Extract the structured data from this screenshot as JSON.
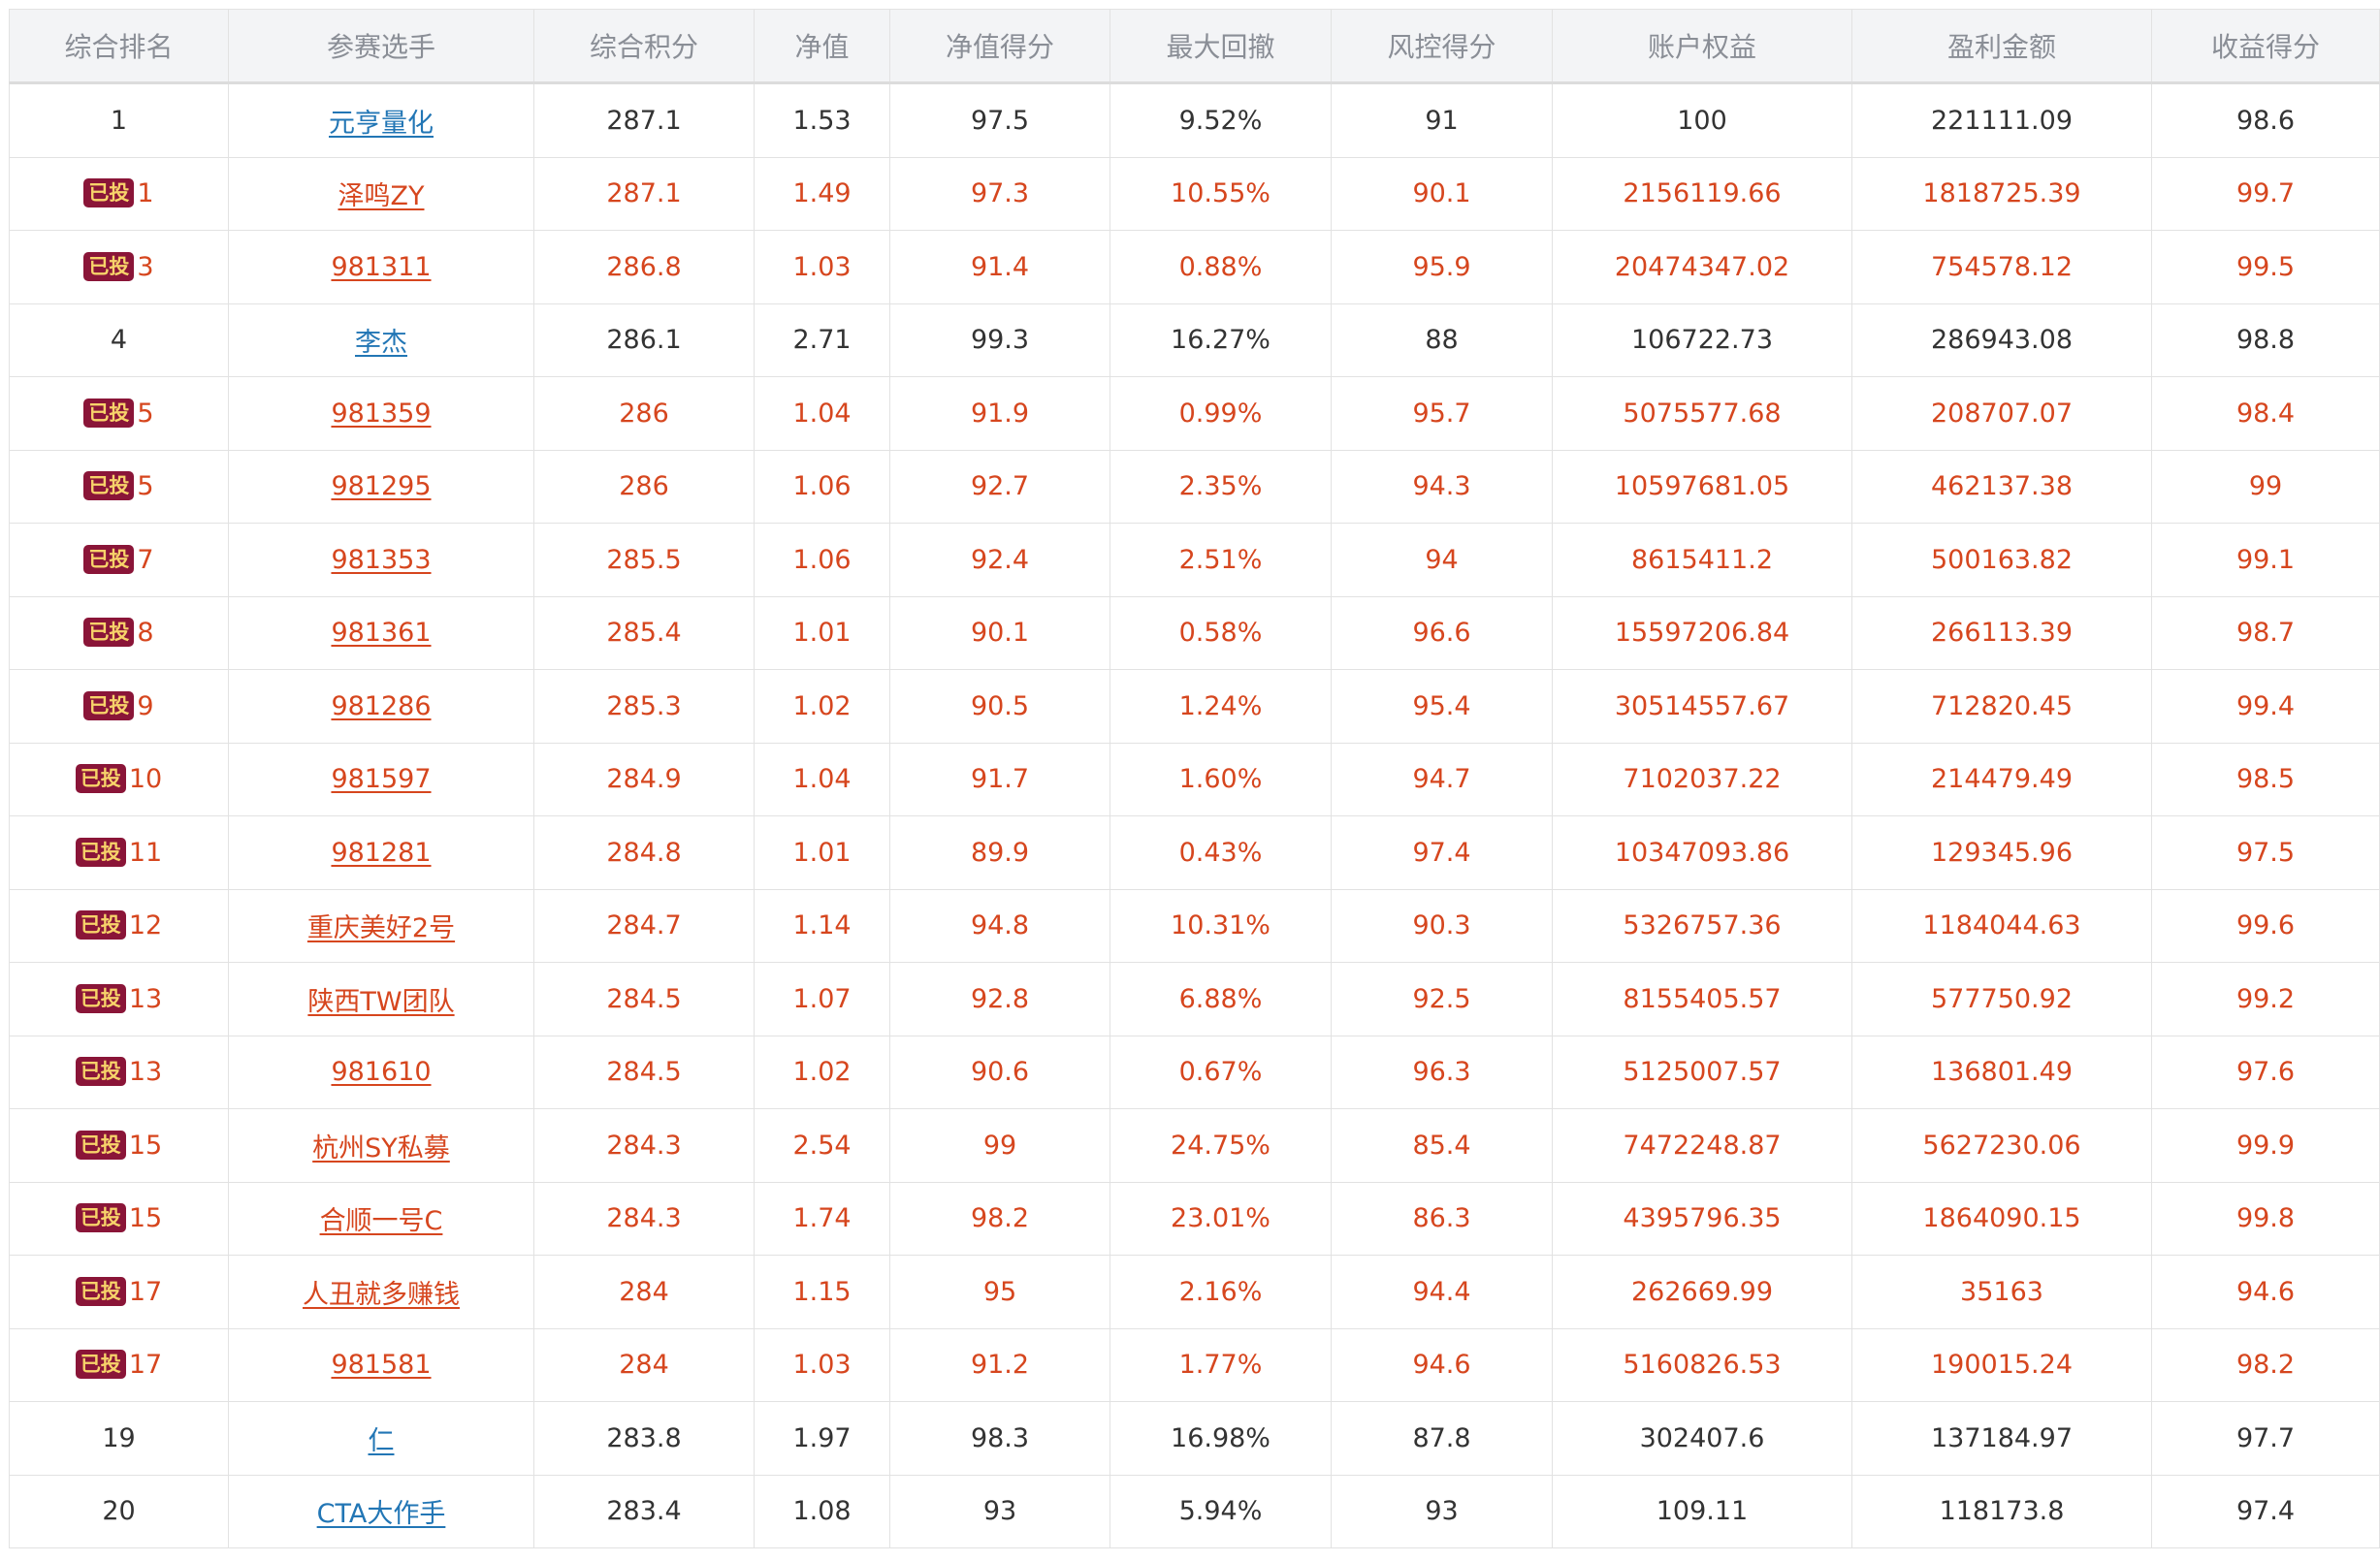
{
  "columns": [
    "综合排名",
    "参赛选手",
    "综合积分",
    "净值",
    "净值得分",
    "最大回撤",
    "风控得分",
    "账户权益",
    "盈利金额",
    "收益得分"
  ],
  "badge_label": "已投",
  "rows": [
    {
      "rank": "1",
      "invested": false,
      "player": "元亨量化",
      "score": "287.1",
      "nav": "1.53",
      "nav_score": "97.5",
      "max_drawdown": "9.52%",
      "risk_score": "91",
      "equity": "100",
      "profit": "221111.09",
      "return_score": "98.6"
    },
    {
      "rank": "1",
      "invested": true,
      "player": "泽鸣ZY",
      "score": "287.1",
      "nav": "1.49",
      "nav_score": "97.3",
      "max_drawdown": "10.55%",
      "risk_score": "90.1",
      "equity": "2156119.66",
      "profit": "1818725.39",
      "return_score": "99.7"
    },
    {
      "rank": "3",
      "invested": true,
      "player": "981311",
      "score": "286.8",
      "nav": "1.03",
      "nav_score": "91.4",
      "max_drawdown": "0.88%",
      "risk_score": "95.9",
      "equity": "20474347.02",
      "profit": "754578.12",
      "return_score": "99.5"
    },
    {
      "rank": "4",
      "invested": false,
      "player": "李杰",
      "score": "286.1",
      "nav": "2.71",
      "nav_score": "99.3",
      "max_drawdown": "16.27%",
      "risk_score": "88",
      "equity": "106722.73",
      "profit": "286943.08",
      "return_score": "98.8"
    },
    {
      "rank": "5",
      "invested": true,
      "player": "981359",
      "score": "286",
      "nav": "1.04",
      "nav_score": "91.9",
      "max_drawdown": "0.99%",
      "risk_score": "95.7",
      "equity": "5075577.68",
      "profit": "208707.07",
      "return_score": "98.4"
    },
    {
      "rank": "5",
      "invested": true,
      "player": "981295",
      "score": "286",
      "nav": "1.06",
      "nav_score": "92.7",
      "max_drawdown": "2.35%",
      "risk_score": "94.3",
      "equity": "10597681.05",
      "profit": "462137.38",
      "return_score": "99"
    },
    {
      "rank": "7",
      "invested": true,
      "player": "981353",
      "score": "285.5",
      "nav": "1.06",
      "nav_score": "92.4",
      "max_drawdown": "2.51%",
      "risk_score": "94",
      "equity": "8615411.2",
      "profit": "500163.82",
      "return_score": "99.1"
    },
    {
      "rank": "8",
      "invested": true,
      "player": "981361",
      "score": "285.4",
      "nav": "1.01",
      "nav_score": "90.1",
      "max_drawdown": "0.58%",
      "risk_score": "96.6",
      "equity": "15597206.84",
      "profit": "266113.39",
      "return_score": "98.7"
    },
    {
      "rank": "9",
      "invested": true,
      "player": "981286",
      "score": "285.3",
      "nav": "1.02",
      "nav_score": "90.5",
      "max_drawdown": "1.24%",
      "risk_score": "95.4",
      "equity": "30514557.67",
      "profit": "712820.45",
      "return_score": "99.4"
    },
    {
      "rank": "10",
      "invested": true,
      "player": "981597",
      "score": "284.9",
      "nav": "1.04",
      "nav_score": "91.7",
      "max_drawdown": "1.60%",
      "risk_score": "94.7",
      "equity": "7102037.22",
      "profit": "214479.49",
      "return_score": "98.5"
    },
    {
      "rank": "11",
      "invested": true,
      "player": "981281",
      "score": "284.8",
      "nav": "1.01",
      "nav_score": "89.9",
      "max_drawdown": "0.43%",
      "risk_score": "97.4",
      "equity": "10347093.86",
      "profit": "129345.96",
      "return_score": "97.5"
    },
    {
      "rank": "12",
      "invested": true,
      "player": "重庆美好2号",
      "score": "284.7",
      "nav": "1.14",
      "nav_score": "94.8",
      "max_drawdown": "10.31%",
      "risk_score": "90.3",
      "equity": "5326757.36",
      "profit": "1184044.63",
      "return_score": "99.6"
    },
    {
      "rank": "13",
      "invested": true,
      "player": "陕西TW团队",
      "score": "284.5",
      "nav": "1.07",
      "nav_score": "92.8",
      "max_drawdown": "6.88%",
      "risk_score": "92.5",
      "equity": "8155405.57",
      "profit": "577750.92",
      "return_score": "99.2"
    },
    {
      "rank": "13",
      "invested": true,
      "player": "981610",
      "score": "284.5",
      "nav": "1.02",
      "nav_score": "90.6",
      "max_drawdown": "0.67%",
      "risk_score": "96.3",
      "equity": "5125007.57",
      "profit": "136801.49",
      "return_score": "97.6"
    },
    {
      "rank": "15",
      "invested": true,
      "player": "杭州SY私募",
      "score": "284.3",
      "nav": "2.54",
      "nav_score": "99",
      "max_drawdown": "24.75%",
      "risk_score": "85.4",
      "equity": "7472248.87",
      "profit": "5627230.06",
      "return_score": "99.9"
    },
    {
      "rank": "15",
      "invested": true,
      "player": "合顺一号C",
      "score": "284.3",
      "nav": "1.74",
      "nav_score": "98.2",
      "max_drawdown": "23.01%",
      "risk_score": "86.3",
      "equity": "4395796.35",
      "profit": "1864090.15",
      "return_score": "99.8"
    },
    {
      "rank": "17",
      "invested": true,
      "player": "人丑就多赚钱",
      "score": "284",
      "nav": "1.15",
      "nav_score": "95",
      "max_drawdown": "2.16%",
      "risk_score": "94.4",
      "equity": "262669.99",
      "profit": "35163",
      "return_score": "94.6"
    },
    {
      "rank": "17",
      "invested": true,
      "player": "981581",
      "score": "284",
      "nav": "1.03",
      "nav_score": "91.2",
      "max_drawdown": "1.77%",
      "risk_score": "94.6",
      "equity": "5160826.53",
      "profit": "190015.24",
      "return_score": "98.2"
    },
    {
      "rank": "19",
      "invested": false,
      "player": "仁",
      "score": "283.8",
      "nav": "1.97",
      "nav_score": "98.3",
      "max_drawdown": "16.98%",
      "risk_score": "87.8",
      "equity": "302407.6",
      "profit": "137184.97",
      "return_score": "97.7"
    },
    {
      "rank": "20",
      "invested": false,
      "player": "CTA大作手",
      "score": "283.4",
      "nav": "1.08",
      "nav_score": "93",
      "max_drawdown": "5.94%",
      "risk_score": "93",
      "equity": "109.11",
      "profit": "118173.8",
      "return_score": "97.4"
    }
  ],
  "colors": {
    "invested_text": "#d6461e",
    "link_blue": "#2276b5",
    "badge_bg": "#8a1538",
    "badge_text": "#f7d36a",
    "header_bg": "#f3f4f6",
    "header_text": "#8a8e96"
  }
}
